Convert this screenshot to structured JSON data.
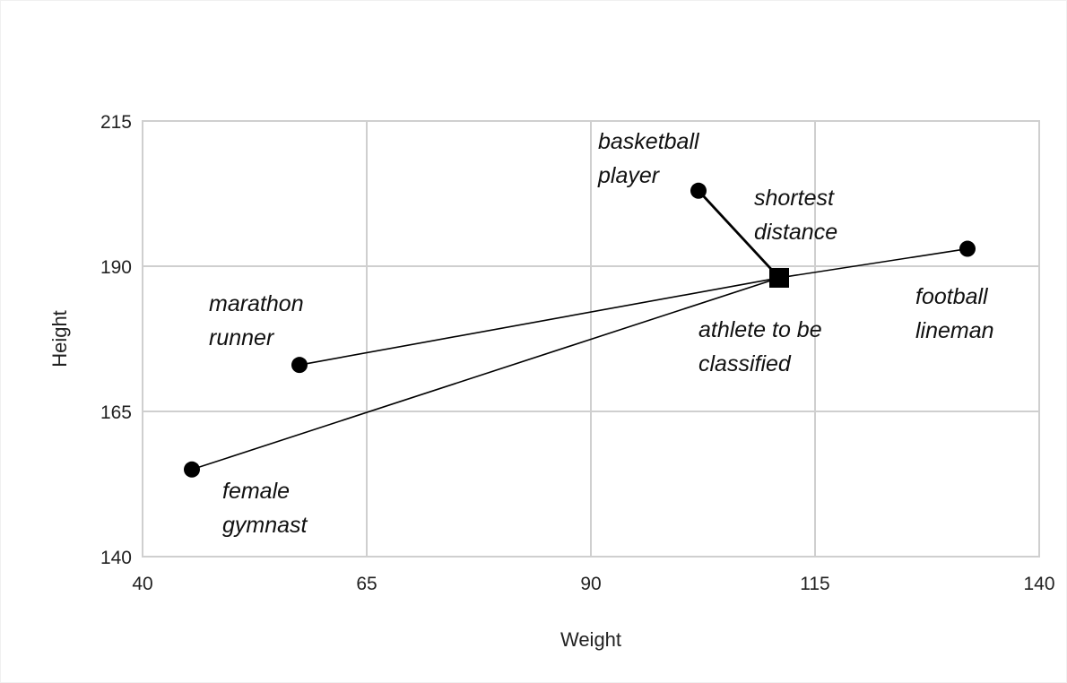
{
  "chart_data": {
    "type": "scatter",
    "title": "",
    "xlabel": "Weight",
    "ylabel": "Height",
    "xlim": [
      40,
      140
    ],
    "ylim": [
      140,
      215
    ],
    "xticks": [
      40,
      65,
      90,
      115,
      140
    ],
    "yticks": [
      140,
      165,
      190,
      215
    ],
    "grid": true,
    "legend": "none",
    "points": [
      {
        "label_lines": [
          "marathon",
          "runner"
        ],
        "x": 57.5,
        "y": 173,
        "marker": "circle"
      },
      {
        "label_lines": [
          "female",
          "gymnast"
        ],
        "x": 45.5,
        "y": 155,
        "marker": "circle"
      },
      {
        "label_lines": [
          "basketball",
          "player"
        ],
        "x": 102,
        "y": 203,
        "marker": "circle"
      },
      {
        "label_lines": [
          "football",
          "lineman"
        ],
        "x": 132,
        "y": 193,
        "marker": "circle"
      }
    ],
    "query_point": {
      "label_lines": [
        "athlete to be",
        "classified"
      ],
      "x": 111,
      "y": 188,
      "marker": "square"
    },
    "connections": [
      {
        "from": 0,
        "highlight": false
      },
      {
        "from": 1,
        "highlight": false
      },
      {
        "from": 2,
        "highlight": true
      },
      {
        "from": 3,
        "highlight": false
      }
    ],
    "annotation": {
      "lines": [
        "shortest",
        "distance"
      ]
    }
  }
}
